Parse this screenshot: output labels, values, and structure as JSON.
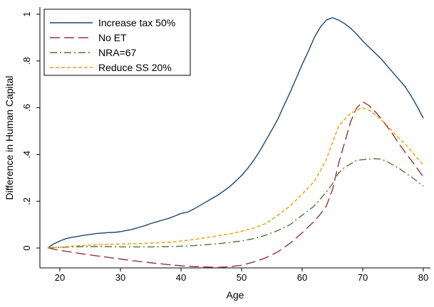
{
  "chart_data": {
    "type": "line",
    "title": "",
    "xlabel": "Age",
    "ylabel": "Difference in Human Capital",
    "xlim": [
      17,
      81
    ],
    "ylim": [
      -0.09,
      1.02
    ],
    "xticks": [
      20,
      30,
      40,
      50,
      60,
      70,
      80
    ],
    "xtick_labels": [
      "20",
      "30",
      "40",
      "50",
      "60",
      "70",
      "80"
    ],
    "yticks": [
      0,
      0.2,
      0.4,
      0.6,
      0.8,
      1
    ],
    "ytick_labels": [
      "0",
      ".2",
      ".4",
      ".6",
      ".8",
      "1"
    ],
    "grid": false,
    "legend_position": "top-left",
    "series": [
      {
        "name": "Increase tax 50%",
        "color": "#1a476f",
        "dash": "solid",
        "x": [
          18,
          19,
          20,
          21,
          22,
          23,
          24,
          25,
          26,
          27,
          28,
          29,
          30,
          31,
          32,
          33,
          34,
          35,
          36,
          37,
          38,
          39,
          40,
          41,
          42,
          43,
          44,
          45,
          46,
          47,
          48,
          49,
          50,
          51,
          52,
          53,
          54,
          55,
          56,
          57,
          58,
          59,
          60,
          61,
          62,
          63,
          64,
          65,
          66,
          67,
          68,
          69,
          70,
          71,
          72,
          73,
          74,
          75,
          76,
          77,
          78,
          79,
          80
        ],
        "values": [
          0.0,
          0.018,
          0.03,
          0.04,
          0.046,
          0.05,
          0.055,
          0.058,
          0.062,
          0.064,
          0.066,
          0.067,
          0.07,
          0.075,
          0.08,
          0.088,
          0.095,
          0.105,
          0.112,
          0.12,
          0.127,
          0.137,
          0.148,
          0.153,
          0.165,
          0.18,
          0.195,
          0.21,
          0.225,
          0.243,
          0.262,
          0.285,
          0.31,
          0.34,
          0.375,
          0.415,
          0.46,
          0.505,
          0.552,
          0.61,
          0.665,
          0.725,
          0.785,
          0.84,
          0.9,
          0.945,
          0.975,
          0.985,
          0.975,
          0.96,
          0.94,
          0.915,
          0.885,
          0.86,
          0.835,
          0.81,
          0.78,
          0.75,
          0.72,
          0.69,
          0.65,
          0.605,
          0.555
        ]
      },
      {
        "name": "No ET",
        "color": "#90353b",
        "dash": "longdash",
        "x": [
          18,
          20,
          22,
          24,
          26,
          28,
          30,
          32,
          34,
          36,
          38,
          40,
          42,
          44,
          46,
          48,
          50,
          52,
          54,
          56,
          58,
          60,
          62,
          63,
          64,
          65,
          66,
          67,
          68,
          69,
          70,
          71,
          72,
          73,
          74,
          75,
          76,
          77,
          78,
          79,
          80
        ],
        "values": [
          0.0,
          -0.01,
          -0.018,
          -0.026,
          -0.033,
          -0.04,
          -0.047,
          -0.054,
          -0.06,
          -0.066,
          -0.071,
          -0.076,
          -0.079,
          -0.081,
          -0.083,
          -0.08,
          -0.074,
          -0.06,
          -0.042,
          -0.016,
          0.02,
          0.065,
          0.115,
          0.145,
          0.18,
          0.25,
          0.36,
          0.45,
          0.54,
          0.6,
          0.625,
          0.61,
          0.585,
          0.555,
          0.52,
          0.485,
          0.445,
          0.41,
          0.375,
          0.34,
          0.305
        ]
      },
      {
        "name": "NRA=67",
        "color": "#55752f",
        "dash": "dashdot",
        "x": [
          18,
          20,
          22,
          24,
          26,
          28,
          30,
          32,
          34,
          36,
          38,
          40,
          42,
          44,
          46,
          48,
          50,
          52,
          54,
          56,
          58,
          60,
          62,
          63,
          64,
          65,
          66,
          67,
          68,
          69,
          70,
          71,
          72,
          73,
          74,
          75,
          76,
          77,
          78,
          79,
          80
        ],
        "values": [
          0.0,
          0.003,
          0.005,
          0.006,
          0.006,
          0.006,
          0.005,
          0.005,
          0.005,
          0.005,
          0.006,
          0.008,
          0.01,
          0.014,
          0.018,
          0.024,
          0.03,
          0.04,
          0.055,
          0.075,
          0.1,
          0.14,
          0.18,
          0.21,
          0.24,
          0.275,
          0.32,
          0.345,
          0.36,
          0.375,
          0.378,
          0.38,
          0.382,
          0.38,
          0.37,
          0.355,
          0.34,
          0.322,
          0.305,
          0.285,
          0.265
        ]
      },
      {
        "name": "Reduce SS 20%",
        "color": "#e8a000",
        "dash": "shortdash",
        "x": [
          18,
          20,
          22,
          24,
          26,
          28,
          30,
          32,
          34,
          36,
          38,
          40,
          42,
          44,
          46,
          48,
          50,
          52,
          54,
          56,
          58,
          60,
          62,
          63,
          64,
          65,
          66,
          67,
          68,
          69,
          70,
          71,
          72,
          73,
          74,
          75,
          76,
          77,
          78,
          79,
          80
        ],
        "values": [
          0.0,
          0.004,
          0.008,
          0.011,
          0.014,
          0.016,
          0.017,
          0.018,
          0.02,
          0.022,
          0.025,
          0.03,
          0.036,
          0.044,
          0.052,
          0.06,
          0.072,
          0.085,
          0.105,
          0.14,
          0.18,
          0.23,
          0.285,
          0.33,
          0.38,
          0.45,
          0.52,
          0.55,
          0.575,
          0.59,
          0.6,
          0.59,
          0.572,
          0.55,
          0.525,
          0.495,
          0.47,
          0.445,
          0.415,
          0.385,
          0.355
        ]
      }
    ]
  }
}
